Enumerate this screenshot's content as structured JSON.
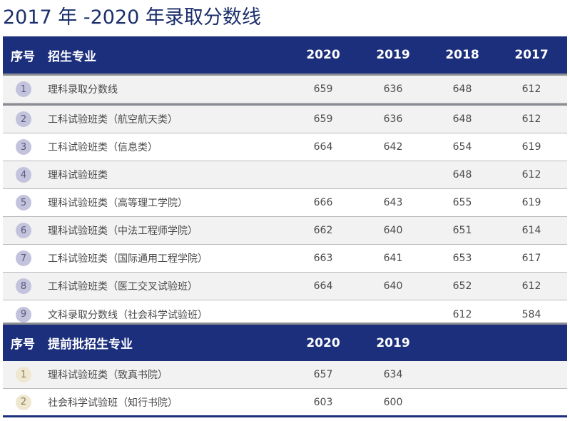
{
  "title": "2017 年 -2020 年录取分数线",
  "main_table": {
    "headers": {
      "index": "序号",
      "major": "招生专业",
      "y2020": "2020",
      "y2019": "2019",
      "y2018": "2018",
      "y2017": "2017"
    },
    "rows": [
      {
        "index": "1",
        "major": "理科录取分数线",
        "y2020": "659",
        "y2019": "636",
        "y2018": "648",
        "y2017": "612"
      },
      {
        "index": "2",
        "major": "工科试验班类（航空航天类）",
        "y2020": "659",
        "y2019": "636",
        "y2018": "648",
        "y2017": "612"
      },
      {
        "index": "3",
        "major": "工科试验班类（信息类）",
        "y2020": "664",
        "y2019": "642",
        "y2018": "654",
        "y2017": "619"
      },
      {
        "index": "4",
        "major": "理科试验班类",
        "y2020": "",
        "y2019": "",
        "y2018": "648",
        "y2017": "612"
      },
      {
        "index": "5",
        "major": "理科试验班类（高等理工学院）",
        "y2020": "666",
        "y2019": "643",
        "y2018": "655",
        "y2017": "619"
      },
      {
        "index": "6",
        "major": "理科试验班类（中法工程师学院）",
        "y2020": "662",
        "y2019": "640",
        "y2018": "651",
        "y2017": "614"
      },
      {
        "index": "7",
        "major": "工科试验班类（国际通用工程学院）",
        "y2020": "663",
        "y2019": "641",
        "y2018": "653",
        "y2017": "617"
      },
      {
        "index": "8",
        "major": "工科试验班类（医工交叉试验班）",
        "y2020": "664",
        "y2019": "640",
        "y2018": "652",
        "y2017": "612"
      },
      {
        "index": "9",
        "major": "文科录取分数线（社会科学试验班）",
        "y2020": "",
        "y2019": "",
        "y2018": "612",
        "y2017": "584"
      }
    ]
  },
  "early_table": {
    "headers": {
      "index": "序号",
      "major": "提前批招生专业",
      "y2020": "2020",
      "y2019": "2019"
    },
    "rows": [
      {
        "index": "1",
        "major": "理科试验班类（致真书院）",
        "y2020": "657",
        "y2019": "634"
      },
      {
        "index": "2",
        "major": "社会科学试验班（知行书院）",
        "y2020": "603",
        "y2019": "600"
      }
    ]
  },
  "colors": {
    "header_bg": "#1c2f7d",
    "title_text": "#1c2f6b",
    "badge_main": "#c3c3de",
    "badge_early": "#efe7cf"
  }
}
